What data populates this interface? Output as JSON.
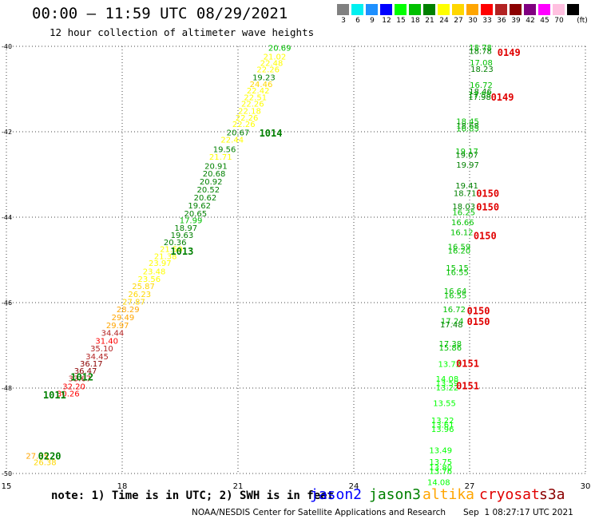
{
  "header": {
    "title": "00:00 – 11:59 UTC 08/29/2021",
    "subtitle": "12 hour collection of altimeter wave heights"
  },
  "legend": {
    "unit": "(ft)",
    "items": [
      {
        "label": "3",
        "color": "#808080"
      },
      {
        "label": "6",
        "color": "#00f0f0"
      },
      {
        "label": "9",
        "color": "#1e90ff"
      },
      {
        "label": "12",
        "color": "#0000ff"
      },
      {
        "label": "15",
        "color": "#00ff00"
      },
      {
        "label": "18",
        "color": "#00c000"
      },
      {
        "label": "21",
        "color": "#008000"
      },
      {
        "label": "24",
        "color": "#ffff00"
      },
      {
        "label": "27",
        "color": "#ffd700"
      },
      {
        "label": "30",
        "color": "#ffa500"
      },
      {
        "label": "33",
        "color": "#ff0000"
      },
      {
        "label": "36",
        "color": "#b22222"
      },
      {
        "label": "39",
        "color": "#8b0000"
      },
      {
        "label": "42",
        "color": "#800080"
      },
      {
        "label": "45",
        "color": "#ff00ff"
      },
      {
        "label": "70",
        "color": "#ffc0e0"
      },
      {
        "label": "",
        "color": "#000000"
      }
    ]
  },
  "chart_data": {
    "type": "scatter",
    "xlim": [
      15,
      30
    ],
    "ylim": [
      -50,
      -40
    ],
    "x_ticks": [
      "15",
      "18",
      "21",
      "24",
      "27",
      "30"
    ],
    "y_ticks": [
      "-40",
      "-42",
      "-44",
      "-46",
      "-48",
      "-50"
    ],
    "grid": true,
    "points": [
      {
        "x": 22.08,
        "y": -40.03,
        "v": "20.69",
        "c": "#00c000"
      },
      {
        "x": 21.95,
        "y": -40.23,
        "v": "21.02",
        "c": "#ffff00"
      },
      {
        "x": 21.87,
        "y": -40.38,
        "v": "22.48",
        "c": "#ffff00"
      },
      {
        "x": 21.78,
        "y": -40.53,
        "v": "22.26",
        "c": "#ffff00"
      },
      {
        "x": 21.67,
        "y": -40.72,
        "v": "19.23",
        "c": "#008000"
      },
      {
        "x": 21.6,
        "y": -40.88,
        "v": "24.46",
        "c": "#ffd700"
      },
      {
        "x": 21.52,
        "y": -41.03,
        "v": "22.42",
        "c": "#ffff00"
      },
      {
        "x": 21.45,
        "y": -41.19,
        "v": "22.51",
        "c": "#ffff00"
      },
      {
        "x": 21.38,
        "y": -41.34,
        "v": "22.26",
        "c": "#ffff00"
      },
      {
        "x": 21.3,
        "y": -41.5,
        "v": "22.18",
        "c": "#ffff00"
      },
      {
        "x": 21.23,
        "y": -41.66,
        "v": "22.26",
        "c": "#ffff00"
      },
      {
        "x": 21.15,
        "y": -41.81,
        "v": "22.26",
        "c": "#ffff00"
      },
      {
        "x": 21.0,
        "y": -42.01,
        "v": "20.67",
        "c": "#008000"
      },
      {
        "x": 20.85,
        "y": -42.18,
        "v": "22.44",
        "c": "#ffff00"
      },
      {
        "x": 20.65,
        "y": -42.4,
        "v": "19.56",
        "c": "#008000"
      },
      {
        "x": 20.55,
        "y": -42.58,
        "v": "21.71",
        "c": "#ffff00"
      },
      {
        "x": 20.43,
        "y": -42.79,
        "v": "20.91",
        "c": "#008000"
      },
      {
        "x": 20.38,
        "y": -42.97,
        "v": "20.68",
        "c": "#008000"
      },
      {
        "x": 20.3,
        "y": -43.16,
        "v": "20.92",
        "c": "#008000"
      },
      {
        "x": 20.23,
        "y": -43.35,
        "v": "20.52",
        "c": "#008000"
      },
      {
        "x": 20.15,
        "y": -43.53,
        "v": "20.62",
        "c": "#008000"
      },
      {
        "x": 20.0,
        "y": -43.72,
        "v": "19.62",
        "c": "#008000"
      },
      {
        "x": 19.9,
        "y": -43.91,
        "v": "20.65",
        "c": "#008000"
      },
      {
        "x": 19.78,
        "y": -44.07,
        "v": "17.99",
        "c": "#00c000"
      },
      {
        "x": 19.65,
        "y": -44.24,
        "v": "18.97",
        "c": "#008000"
      },
      {
        "x": 19.55,
        "y": -44.41,
        "v": "19.63",
        "c": "#008000"
      },
      {
        "x": 19.37,
        "y": -44.58,
        "v": "20.36",
        "c": "#008000"
      },
      {
        "x": 19.27,
        "y": -44.74,
        "v": "21.50",
        "c": "#ffff00"
      },
      {
        "x": 19.12,
        "y": -44.91,
        "v": "21.38",
        "c": "#ffff00"
      },
      {
        "x": 18.98,
        "y": -45.07,
        "v": "23.97",
        "c": "#ffff00"
      },
      {
        "x": 18.83,
        "y": -45.26,
        "v": "23.48",
        "c": "#ffff00"
      },
      {
        "x": 18.7,
        "y": -45.44,
        "v": "23.56",
        "c": "#ffff00"
      },
      {
        "x": 18.55,
        "y": -45.61,
        "v": "25.87",
        "c": "#ffd700"
      },
      {
        "x": 18.45,
        "y": -45.79,
        "v": "26.23",
        "c": "#ffd700"
      },
      {
        "x": 18.3,
        "y": -45.97,
        "v": "27.87",
        "c": "#ffd700"
      },
      {
        "x": 18.15,
        "y": -46.15,
        "v": "28.29",
        "c": "#ffa500"
      },
      {
        "x": 18.02,
        "y": -46.34,
        "v": "29.49",
        "c": "#ffa500"
      },
      {
        "x": 17.88,
        "y": -46.52,
        "v": "29.97",
        "c": "#ffa500"
      },
      {
        "x": 17.75,
        "y": -46.7,
        "v": "34.44",
        "c": "#b22222"
      },
      {
        "x": 17.6,
        "y": -46.89,
        "v": "31.40",
        "c": "#ff0000"
      },
      {
        "x": 17.47,
        "y": -47.07,
        "v": "35.10",
        "c": "#b22222"
      },
      {
        "x": 17.35,
        "y": -47.25,
        "v": "34.45",
        "c": "#b22222"
      },
      {
        "x": 17.2,
        "y": -47.42,
        "v": "36.17",
        "c": "#8b0000"
      },
      {
        "x": 17.05,
        "y": -47.59,
        "v": "36.47",
        "c": "#8b0000"
      },
      {
        "x": 16.9,
        "y": -47.77,
        "v": "33.67",
        "c": "#b22222"
      },
      {
        "x": 16.75,
        "y": -47.95,
        "v": "32.20",
        "c": "#ff0000"
      },
      {
        "x": 16.6,
        "y": -48.12,
        "v": "30.26",
        "c": "#ff0000"
      },
      {
        "x": 15.8,
        "y": -49.58,
        "v": "27.35",
        "c": "#ffa500"
      },
      {
        "x": 16.0,
        "y": -49.73,
        "v": "26.38",
        "c": "#ffd700"
      },
      {
        "x": 27.28,
        "y": -40.02,
        "v": "18.78",
        "c": "#00c000"
      },
      {
        "x": 27.28,
        "y": -40.1,
        "v": "18.78",
        "c": "#008000"
      },
      {
        "x": 27.3,
        "y": -40.37,
        "v": "17.08",
        "c": "#00c000"
      },
      {
        "x": 27.32,
        "y": -40.52,
        "v": "18.23",
        "c": "#008000"
      },
      {
        "x": 27.3,
        "y": -40.9,
        "v": "16.72",
        "c": "#00c000"
      },
      {
        "x": 27.28,
        "y": -41.05,
        "v": "18.46",
        "c": "#008000"
      },
      {
        "x": 27.26,
        "y": -41.12,
        "v": "17.58",
        "c": "#00c000"
      },
      {
        "x": 27.26,
        "y": -41.18,
        "v": "17.98",
        "c": "#008000"
      },
      {
        "x": 26.95,
        "y": -41.75,
        "v": "18.45",
        "c": "#00c000"
      },
      {
        "x": 26.95,
        "y": -41.85,
        "v": "18.68",
        "c": "#008000"
      },
      {
        "x": 26.95,
        "y": -41.92,
        "v": "16.85",
        "c": "#00c000"
      },
      {
        "x": 26.93,
        "y": -42.45,
        "v": "19.17",
        "c": "#00c000"
      },
      {
        "x": 26.93,
        "y": -42.53,
        "v": "19.07",
        "c": "#008000"
      },
      {
        "x": 26.95,
        "y": -42.77,
        "v": "19.97",
        "c": "#008000"
      },
      {
        "x": 26.93,
        "y": -43.25,
        "v": "19.41",
        "c": "#008000"
      },
      {
        "x": 26.88,
        "y": -43.43,
        "v": "18.71",
        "c": "#008000"
      },
      {
        "x": 26.85,
        "y": -43.74,
        "v": "18.03",
        "c": "#008000"
      },
      {
        "x": 26.85,
        "y": -43.88,
        "v": "16.25",
        "c": "#00c000"
      },
      {
        "x": 26.82,
        "y": -44.11,
        "v": "16.66",
        "c": "#00c000"
      },
      {
        "x": 26.8,
        "y": -44.35,
        "v": "16.12",
        "c": "#00c000"
      },
      {
        "x": 26.73,
        "y": -44.68,
        "v": "16.59",
        "c": "#00c000"
      },
      {
        "x": 26.73,
        "y": -44.78,
        "v": "16.20",
        "c": "#00c000"
      },
      {
        "x": 26.68,
        "y": -45.18,
        "v": "15.15",
        "c": "#00c000"
      },
      {
        "x": 26.68,
        "y": -45.28,
        "v": "16.55",
        "c": "#00c000"
      },
      {
        "x": 26.63,
        "y": -45.72,
        "v": "16.64",
        "c": "#00c000"
      },
      {
        "x": 26.63,
        "y": -45.82,
        "v": "16.55",
        "c": "#00c000"
      },
      {
        "x": 26.6,
        "y": -46.15,
        "v": "16.72",
        "c": "#00c000"
      },
      {
        "x": 26.55,
        "y": -46.42,
        "v": "17.24",
        "c": "#00c000"
      },
      {
        "x": 26.53,
        "y": -46.5,
        "v": "17.48",
        "c": "#008000"
      },
      {
        "x": 26.5,
        "y": -46.95,
        "v": "17.38",
        "c": "#00c000"
      },
      {
        "x": 26.5,
        "y": -47.05,
        "v": "15.86",
        "c": "#00c000"
      },
      {
        "x": 26.48,
        "y": -47.43,
        "v": "13.72",
        "c": "#00ff00"
      },
      {
        "x": 26.42,
        "y": -47.78,
        "v": "14.08",
        "c": "#00ff00"
      },
      {
        "x": 26.42,
        "y": -47.88,
        "v": "13.59",
        "c": "#00ff00"
      },
      {
        "x": 26.42,
        "y": -47.98,
        "v": "13.22",
        "c": "#00ff00"
      },
      {
        "x": 26.35,
        "y": -48.35,
        "v": "13.55",
        "c": "#00ff00"
      },
      {
        "x": 26.3,
        "y": -48.75,
        "v": "13.22",
        "c": "#00ff00"
      },
      {
        "x": 26.3,
        "y": -48.85,
        "v": "13.61",
        "c": "#00ff00"
      },
      {
        "x": 26.3,
        "y": -48.95,
        "v": "13.96",
        "c": "#00ff00"
      },
      {
        "x": 26.25,
        "y": -49.45,
        "v": "13.49",
        "c": "#00ff00"
      },
      {
        "x": 26.25,
        "y": -49.72,
        "v": "13.75",
        "c": "#00ff00"
      },
      {
        "x": 26.25,
        "y": -49.85,
        "v": "13.80",
        "c": "#00ff00"
      },
      {
        "x": 26.25,
        "y": -49.93,
        "v": "13.76",
        "c": "#00ff00"
      },
      {
        "x": 26.2,
        "y": -50.2,
        "v": "14.08",
        "c": "#00ff00"
      }
    ],
    "track_labels": [
      {
        "x": 21.55,
        "y": -42.04,
        "text": "1014",
        "c": "#008000"
      },
      {
        "x": 19.25,
        "y": -44.8,
        "text": "1013",
        "c": "#008000"
      },
      {
        "x": 16.66,
        "y": -47.75,
        "text": "1012",
        "c": "#008000"
      },
      {
        "x": 15.95,
        "y": -48.17,
        "text": "1011",
        "c": "#008000"
      },
      {
        "x": 15.82,
        "y": -49.6,
        "text": "0220",
        "c": "#008000"
      },
      {
        "x": 27.72,
        "y": -40.15,
        "text": "0149",
        "c": "#e00000"
      },
      {
        "x": 27.55,
        "y": -41.2,
        "text": "0149",
        "c": "#e00000"
      },
      {
        "x": 27.17,
        "y": -43.45,
        "text": "0150",
        "c": "#e00000"
      },
      {
        "x": 27.17,
        "y": -43.77,
        "text": "0150",
        "c": "#e00000"
      },
      {
        "x": 27.1,
        "y": -44.44,
        "text": "0150",
        "c": "#e00000"
      },
      {
        "x": 26.93,
        "y": -46.2,
        "text": "0150",
        "c": "#e00000"
      },
      {
        "x": 26.93,
        "y": -46.45,
        "text": "0150",
        "c": "#e00000"
      },
      {
        "x": 26.65,
        "y": -47.43,
        "text": "0151",
        "c": "#e00000"
      },
      {
        "x": 26.65,
        "y": -47.95,
        "text": "0151",
        "c": "#e00000"
      }
    ]
  },
  "footer": {
    "note": "note: 1) Time is in UTC; 2) SWH is in feet",
    "satellites": [
      {
        "name": "jason2",
        "color": "#0000ff"
      },
      {
        "name": "jason3",
        "color": "#008000"
      },
      {
        "name": "altika",
        "color": "#ffa500"
      },
      {
        "name": "cryosat",
        "color": "#e00000"
      },
      {
        "name": "s3a",
        "color": "#8b0000"
      }
    ],
    "credit": "NOAA/NESDIS Center for Satellite Applications and Research",
    "timestamp": "Sep  1 08:27:17 UTC 2021"
  }
}
